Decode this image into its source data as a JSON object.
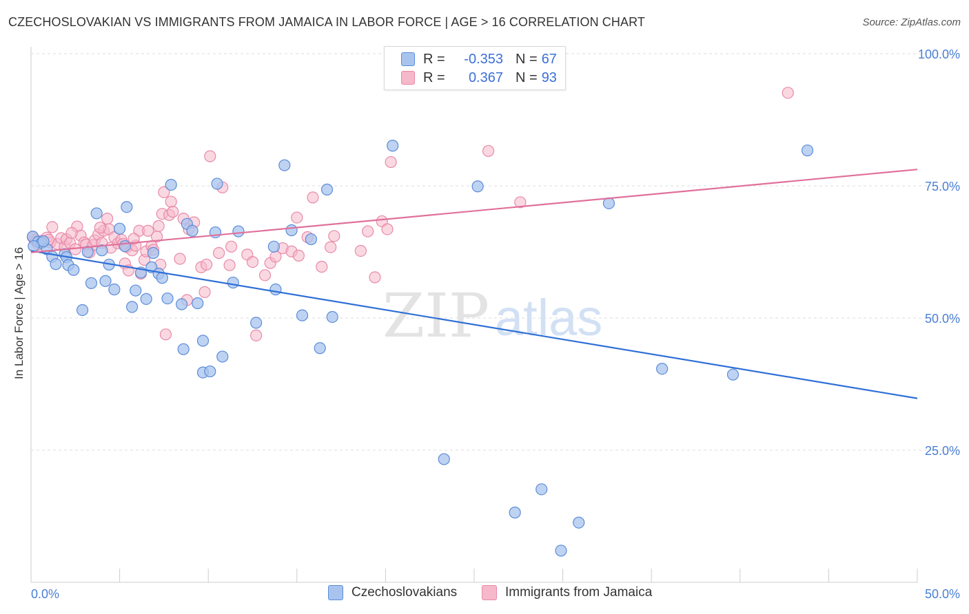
{
  "header": {
    "title": "CZECHOSLOVAKIAN VS IMMIGRANTS FROM JAMAICA IN LABOR FORCE | AGE > 16 CORRELATION CHART",
    "source": "Source: ZipAtlas.com"
  },
  "legend_top": {
    "rows": [
      {
        "r_label": "R =",
        "r_value": "-0.353",
        "n_label": "N =",
        "n_value": "67"
      },
      {
        "r_label": "R =",
        "r_value": "0.367",
        "n_label": "N =",
        "n_value": "93"
      }
    ]
  },
  "legend_bottom": {
    "items": [
      "Czechoslovakians",
      "Immigrants from Jamaica"
    ]
  },
  "watermark": {
    "zip": "ZIP",
    "atlas": "atlas"
  },
  "colors": {
    "blue_fill": "#a8c4ee",
    "blue_stroke": "#5b8bd8",
    "blue_line": "#2f6fd6",
    "pink_fill": "#f6b8cb",
    "pink_stroke": "#e889a8",
    "pink_line": "#e0709a",
    "tick_label": "#4a7fd4",
    "grid": "#dddddd"
  },
  "chart_data": {
    "type": "scatter",
    "title": "CZECHOSLOVAKIAN VS IMMIGRANTS FROM JAMAICA IN LABOR FORCE | AGE > 16 CORRELATION CHART",
    "xlabel": "",
    "ylabel": "In Labor Force | Age > 16",
    "xlim": [
      0,
      50
    ],
    "ylim": [
      0,
      100
    ],
    "x_tick_labels": [
      "0.0%",
      "50.0%"
    ],
    "y_ticks": [
      25,
      50,
      75,
      100
    ],
    "y_tick_labels": [
      "25.0%",
      "50.0%",
      "75.0%",
      "100.0%"
    ],
    "grid": true,
    "legend_position": "top-center",
    "series": [
      {
        "name": "Czechoslovakians",
        "r": -0.353,
        "n": 67,
        "trend": {
          "x": [
            0,
            50
          ],
          "y": [
            62.7,
            34.8
          ]
        },
        "points": [
          [
            0.1,
            65.4
          ],
          [
            0.4,
            64.4
          ],
          [
            0.6,
            64.2
          ],
          [
            0.9,
            63.0
          ],
          [
            1.2,
            61.6
          ],
          [
            1.4,
            60.2
          ],
          [
            1.9,
            62.1
          ],
          [
            2.0,
            61.5
          ],
          [
            2.1,
            60.0
          ],
          [
            2.4,
            59.1
          ],
          [
            2.9,
            51.5
          ],
          [
            3.2,
            62.5
          ],
          [
            3.4,
            56.6
          ],
          [
            3.7,
            69.8
          ],
          [
            4.0,
            62.8
          ],
          [
            4.2,
            57.0
          ],
          [
            4.4,
            60.1
          ],
          [
            4.7,
            55.4
          ],
          [
            5.0,
            66.9
          ],
          [
            5.3,
            63.6
          ],
          [
            5.4,
            71.0
          ],
          [
            5.7,
            52.1
          ],
          [
            5.9,
            55.2
          ],
          [
            6.2,
            58.6
          ],
          [
            6.5,
            53.6
          ],
          [
            6.8,
            59.6
          ],
          [
            6.9,
            62.3
          ],
          [
            7.2,
            58.4
          ],
          [
            7.4,
            57.6
          ],
          [
            7.7,
            53.7
          ],
          [
            7.9,
            75.2
          ],
          [
            8.5,
            52.6
          ],
          [
            8.6,
            44.1
          ],
          [
            8.8,
            67.8
          ],
          [
            9.1,
            66.5
          ],
          [
            9.4,
            52.8
          ],
          [
            9.7,
            39.7
          ],
          [
            9.7,
            45.7
          ],
          [
            10.1,
            39.9
          ],
          [
            10.4,
            66.2
          ],
          [
            10.5,
            75.4
          ],
          [
            10.8,
            42.7
          ],
          [
            11.4,
            56.7
          ],
          [
            11.7,
            66.4
          ],
          [
            12.7,
            49.1
          ],
          [
            13.7,
            63.5
          ],
          [
            13.8,
            55.4
          ],
          [
            14.3,
            78.9
          ],
          [
            14.7,
            66.6
          ],
          [
            15.3,
            50.5
          ],
          [
            15.8,
            64.9
          ],
          [
            16.3,
            44.3
          ],
          [
            16.7,
            74.3
          ],
          [
            17.0,
            50.2
          ],
          [
            20.4,
            82.6
          ],
          [
            23.3,
            23.3
          ],
          [
            25.2,
            74.9
          ],
          [
            27.3,
            13.2
          ],
          [
            28.8,
            17.6
          ],
          [
            29.9,
            6.0
          ],
          [
            30.9,
            11.3
          ],
          [
            32.6,
            71.7
          ],
          [
            35.6,
            40.4
          ],
          [
            39.6,
            39.3
          ],
          [
            43.8,
            81.7
          ],
          [
            0.15,
            63.6
          ],
          [
            0.7,
            64.5
          ]
        ]
      },
      {
        "name": "Immigrants from Jamaica",
        "r": 0.367,
        "n": 93,
        "trend": {
          "x": [
            0,
            50
          ],
          "y": [
            62.4,
            78.1
          ]
        },
        "points": [
          [
            0.2,
            64.8
          ],
          [
            0.4,
            63.9
          ],
          [
            0.6,
            64.6
          ],
          [
            0.9,
            65.2
          ],
          [
            1.1,
            64.3
          ],
          [
            1.2,
            67.2
          ],
          [
            1.5,
            64.0
          ],
          [
            1.7,
            65.1
          ],
          [
            1.9,
            63.5
          ],
          [
            2.0,
            64.9
          ],
          [
            2.2,
            64.2
          ],
          [
            2.5,
            63.0
          ],
          [
            2.6,
            67.3
          ],
          [
            2.8,
            65.6
          ],
          [
            3.0,
            64.3
          ],
          [
            3.1,
            63.9
          ],
          [
            3.3,
            62.4
          ],
          [
            3.5,
            63.8
          ],
          [
            3.6,
            64.7
          ],
          [
            3.8,
            65.8
          ],
          [
            4.0,
            64.2
          ],
          [
            4.1,
            66.5
          ],
          [
            4.3,
            68.8
          ],
          [
            4.4,
            66.8
          ],
          [
            4.5,
            63.3
          ],
          [
            4.7,
            65.3
          ],
          [
            4.9,
            64.1
          ],
          [
            5.1,
            64.8
          ],
          [
            5.2,
            64.0
          ],
          [
            5.3,
            60.3
          ],
          [
            5.4,
            63.4
          ],
          [
            5.5,
            59.0
          ],
          [
            5.7,
            62.8
          ],
          [
            5.9,
            63.7
          ],
          [
            6.1,
            66.5
          ],
          [
            6.2,
            58.4
          ],
          [
            6.4,
            61.0
          ],
          [
            6.5,
            62.6
          ],
          [
            6.6,
            66.5
          ],
          [
            6.8,
            63.6
          ],
          [
            6.9,
            62.9
          ],
          [
            7.1,
            65.4
          ],
          [
            7.2,
            67.4
          ],
          [
            7.3,
            60.1
          ],
          [
            7.4,
            69.7
          ],
          [
            7.5,
            73.8
          ],
          [
            7.6,
            46.9
          ],
          [
            7.8,
            69.5
          ],
          [
            7.9,
            72.0
          ],
          [
            8.0,
            70.1
          ],
          [
            8.4,
            61.2
          ],
          [
            8.6,
            68.8
          ],
          [
            8.8,
            53.4
          ],
          [
            8.9,
            66.8
          ],
          [
            9.2,
            68.1
          ],
          [
            9.6,
            59.6
          ],
          [
            9.8,
            54.9
          ],
          [
            9.9,
            60.1
          ],
          [
            10.1,
            80.6
          ],
          [
            10.6,
            62.3
          ],
          [
            10.8,
            74.7
          ],
          [
            11.2,
            60.0
          ],
          [
            11.3,
            63.5
          ],
          [
            12.2,
            62.0
          ],
          [
            12.5,
            60.6
          ],
          [
            12.7,
            46.7
          ],
          [
            13.2,
            58.1
          ],
          [
            13.5,
            60.4
          ],
          [
            13.8,
            61.6
          ],
          [
            14.2,
            63.2
          ],
          [
            14.7,
            62.6
          ],
          [
            15.0,
            69.0
          ],
          [
            15.1,
            61.8
          ],
          [
            15.6,
            65.3
          ],
          [
            15.9,
            72.8
          ],
          [
            16.4,
            59.7
          ],
          [
            16.9,
            63.4
          ],
          [
            17.1,
            65.5
          ],
          [
            18.6,
            62.7
          ],
          [
            19.0,
            66.4
          ],
          [
            19.4,
            57.7
          ],
          [
            19.8,
            68.3
          ],
          [
            20.1,
            66.8
          ],
          [
            20.3,
            79.5
          ],
          [
            25.8,
            81.6
          ],
          [
            27.6,
            71.9
          ],
          [
            42.7,
            92.6
          ],
          [
            0.1,
            65.3
          ],
          [
            0.3,
            64.6
          ],
          [
            1.0,
            64.8
          ],
          [
            2.3,
            66.1
          ],
          [
            3.9,
            67.1
          ],
          [
            5.8,
            65.0
          ]
        ]
      }
    ]
  }
}
